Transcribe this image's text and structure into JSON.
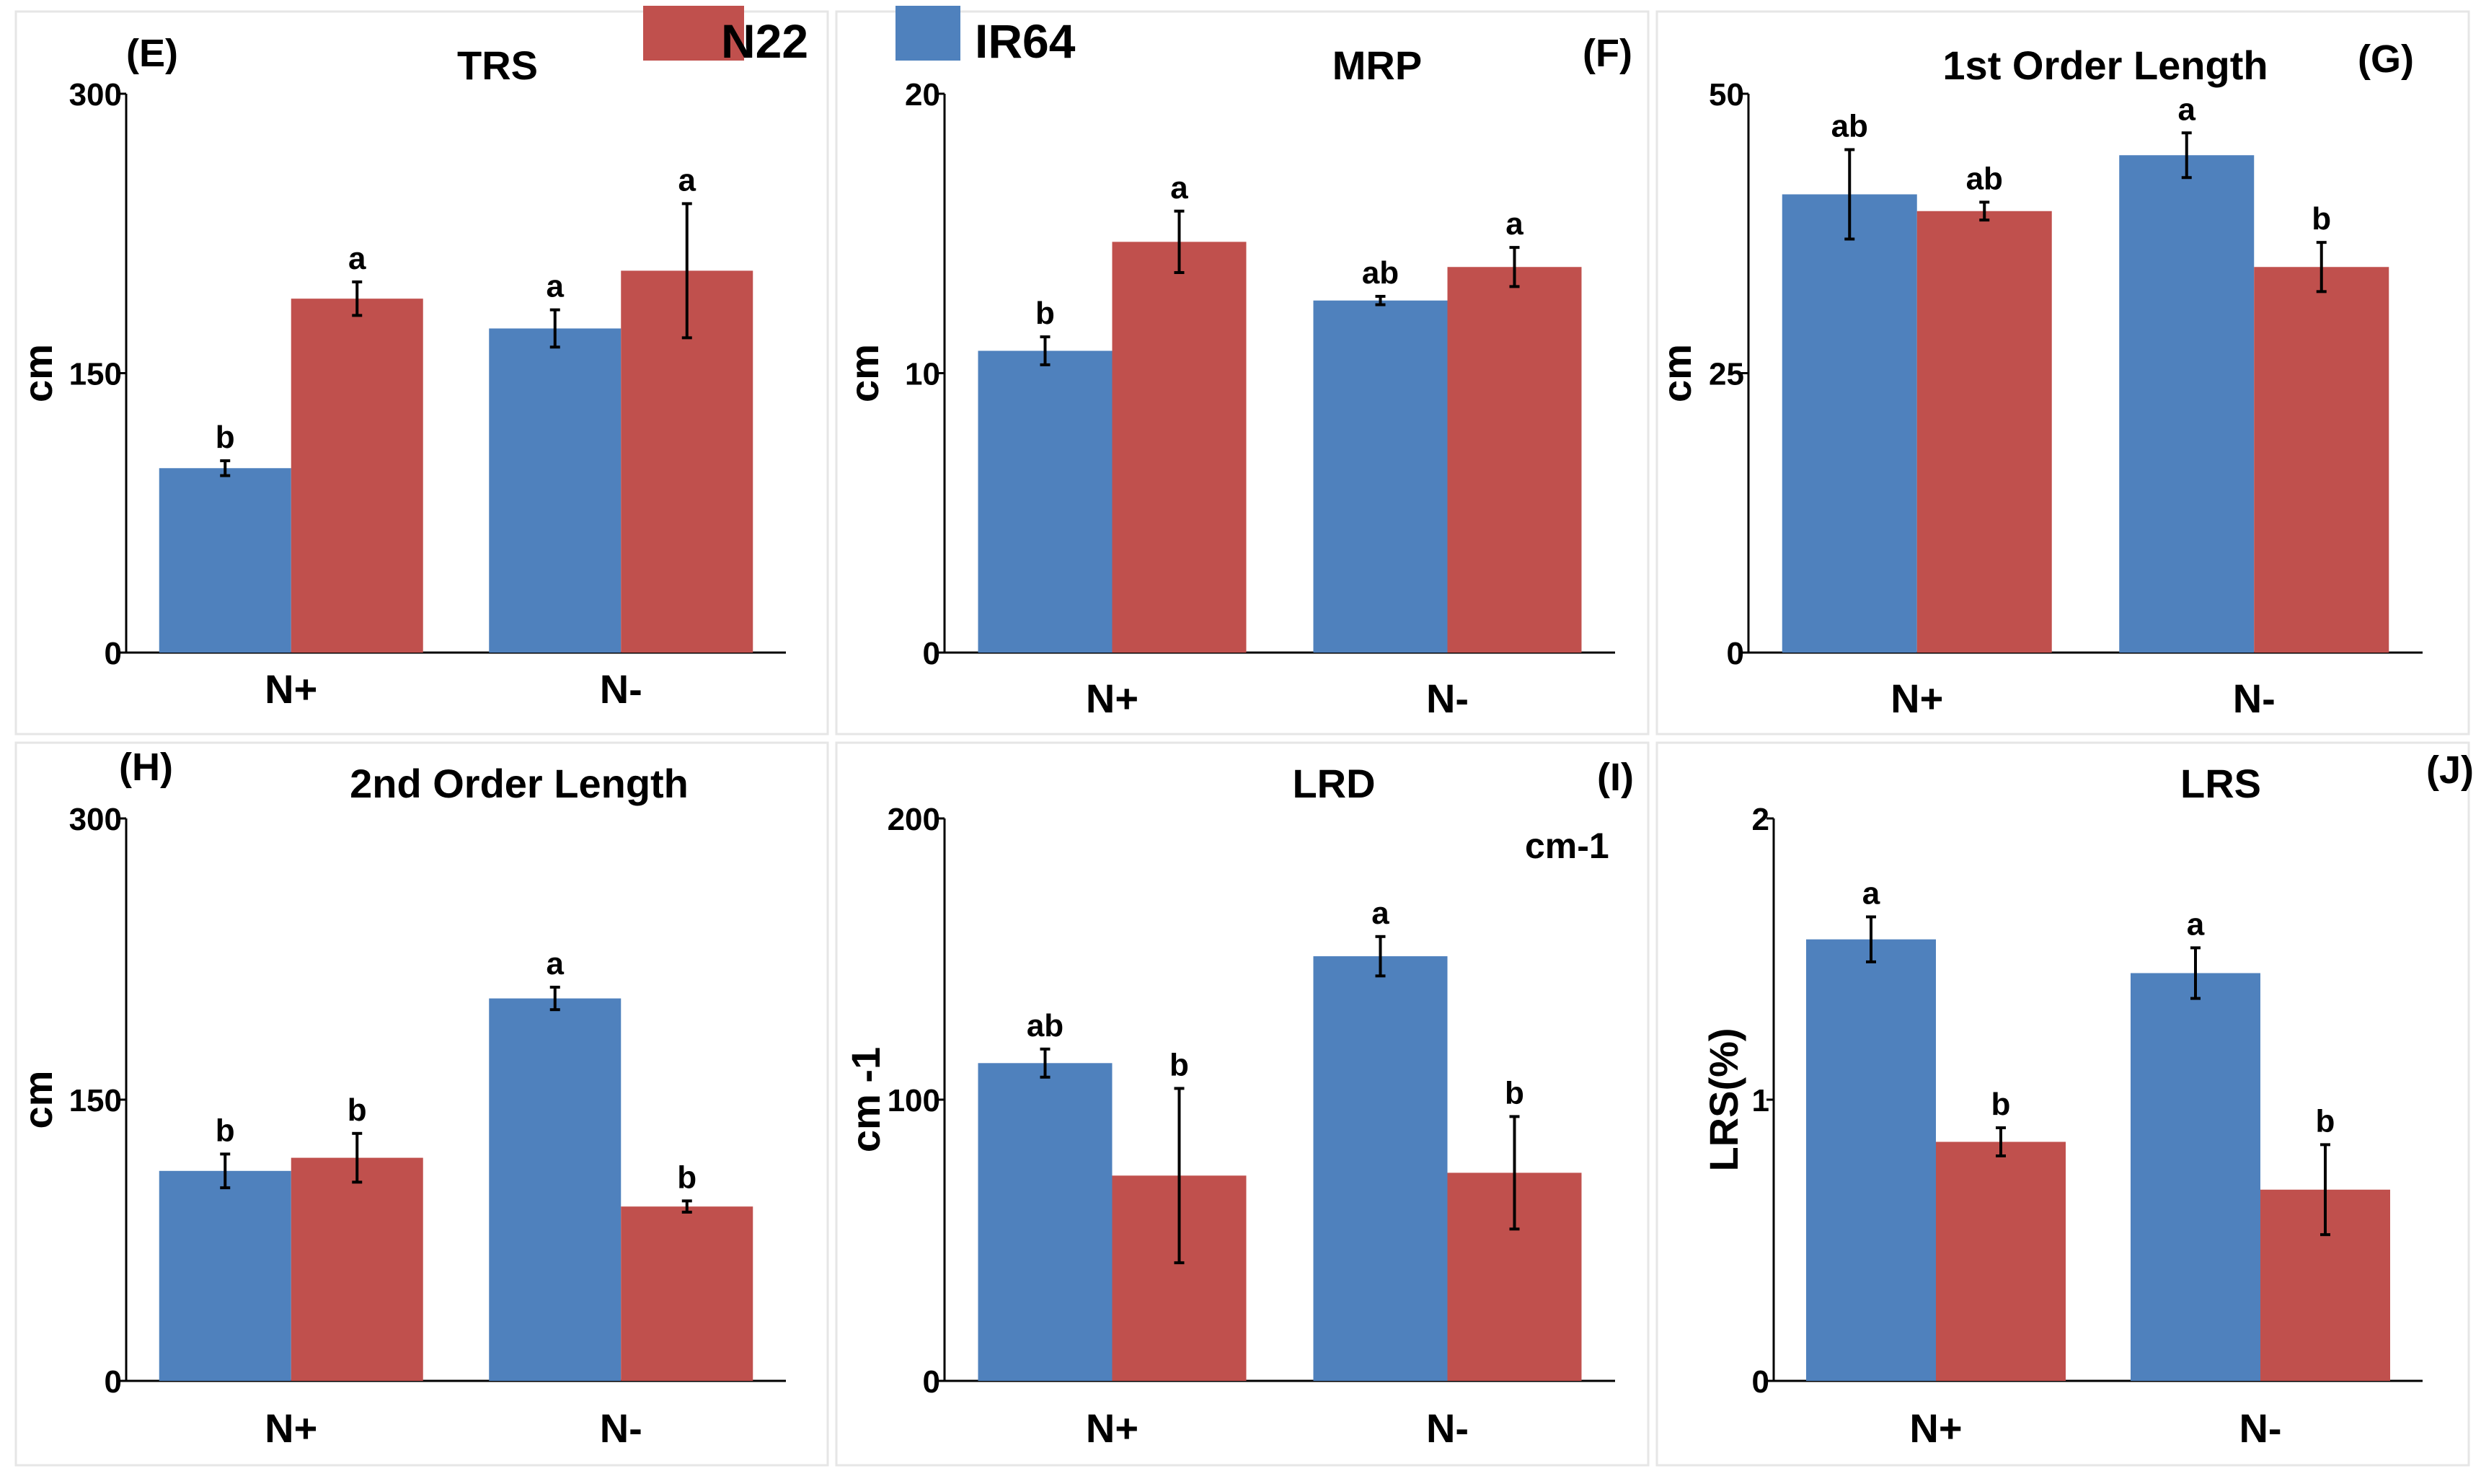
{
  "legend": [
    {
      "name": "N22",
      "color": "#c0504d"
    },
    {
      "name": "IR64",
      "color": "#4f81bd"
    }
  ],
  "colors": {
    "IR64": "#4f81bd",
    "N22": "#c0504d"
  },
  "chart_data": [
    {
      "type": "bar",
      "letter": "(E)",
      "title": "TRS",
      "ylabel": "cm",
      "unit_note": "",
      "ylim": [
        0,
        300
      ],
      "yticks": [
        0,
        150,
        300
      ],
      "categories": [
        "N+",
        "N-"
      ],
      "series": [
        {
          "name": "IR64",
          "values": [
            99,
            174
          ],
          "errors": [
            4,
            10
          ],
          "letters": [
            "b",
            "a"
          ]
        },
        {
          "name": "N22",
          "values": [
            190,
            205
          ],
          "errors": [
            9,
            36
          ],
          "letters": [
            "a",
            "a"
          ]
        }
      ]
    },
    {
      "type": "bar",
      "letter": "(F)",
      "title": "MRP",
      "ylabel": "cm",
      "unit_note": "",
      "ylim": [
        0,
        20
      ],
      "yticks": [
        0,
        10,
        20
      ],
      "categories": [
        "N+",
        "N-"
      ],
      "series": [
        {
          "name": "IR64",
          "values": [
            10.8,
            12.6
          ],
          "errors": [
            0.5,
            0.15
          ],
          "letters": [
            "b",
            "ab"
          ]
        },
        {
          "name": "N22",
          "values": [
            14.7,
            13.8
          ],
          "errors": [
            1.1,
            0.7
          ],
          "letters": [
            "a",
            "a"
          ]
        }
      ]
    },
    {
      "type": "bar",
      "letter": "(G)",
      "title": "1st Order Length",
      "ylabel": "cm",
      "unit_note": "",
      "ylim": [
        0,
        50
      ],
      "yticks": [
        0,
        25,
        50
      ],
      "categories": [
        "N+",
        "N-"
      ],
      "series": [
        {
          "name": "IR64",
          "values": [
            41,
            44.5
          ],
          "errors": [
            4,
            2
          ],
          "letters": [
            "ab",
            "a"
          ]
        },
        {
          "name": "N22",
          "values": [
            39.5,
            34.5
          ],
          "errors": [
            0.8,
            2.2
          ],
          "letters": [
            "ab",
            "b"
          ]
        }
      ]
    },
    {
      "type": "bar",
      "letter": "(H)",
      "title": "2nd Order Length",
      "ylabel": "cm",
      "unit_note": "",
      "ylim": [
        0,
        300
      ],
      "yticks": [
        0,
        150,
        300
      ],
      "categories": [
        "N+",
        "N-"
      ],
      "series": [
        {
          "name": "IR64",
          "values": [
            112,
            204
          ],
          "errors": [
            9,
            6
          ],
          "letters": [
            "b",
            "a"
          ]
        },
        {
          "name": "N22",
          "values": [
            119,
            93
          ],
          "errors": [
            13,
            3
          ],
          "letters": [
            "b",
            "b"
          ]
        }
      ]
    },
    {
      "type": "bar",
      "letter": "(I)",
      "title": "LRD",
      "ylabel": "cm -1",
      "unit_note": "cm-1",
      "ylim": [
        0,
        200
      ],
      "yticks": [
        0,
        100,
        200
      ],
      "categories": [
        "N+",
        "N-"
      ],
      "series": [
        {
          "name": "IR64",
          "values": [
            113,
            151
          ],
          "errors": [
            5,
            7
          ],
          "letters": [
            "ab",
            "a"
          ]
        },
        {
          "name": "N22",
          "values": [
            73,
            74
          ],
          "errors": [
            31,
            20
          ],
          "letters": [
            "b",
            "b"
          ]
        }
      ]
    },
    {
      "type": "bar",
      "letter": "(J)",
      "title": "LRS",
      "ylabel": "LRS(%)",
      "unit_note": "",
      "ylim": [
        0,
        2
      ],
      "yticks": [
        0,
        1,
        2
      ],
      "categories": [
        "N+",
        "N-"
      ],
      "series": [
        {
          "name": "IR64",
          "values": [
            1.57,
            1.45
          ],
          "errors": [
            0.08,
            0.09
          ],
          "letters": [
            "a",
            "a"
          ]
        },
        {
          "name": "N22",
          "values": [
            0.85,
            0.68
          ],
          "errors": [
            0.05,
            0.16
          ],
          "letters": [
            "b",
            "b"
          ]
        }
      ]
    }
  ]
}
